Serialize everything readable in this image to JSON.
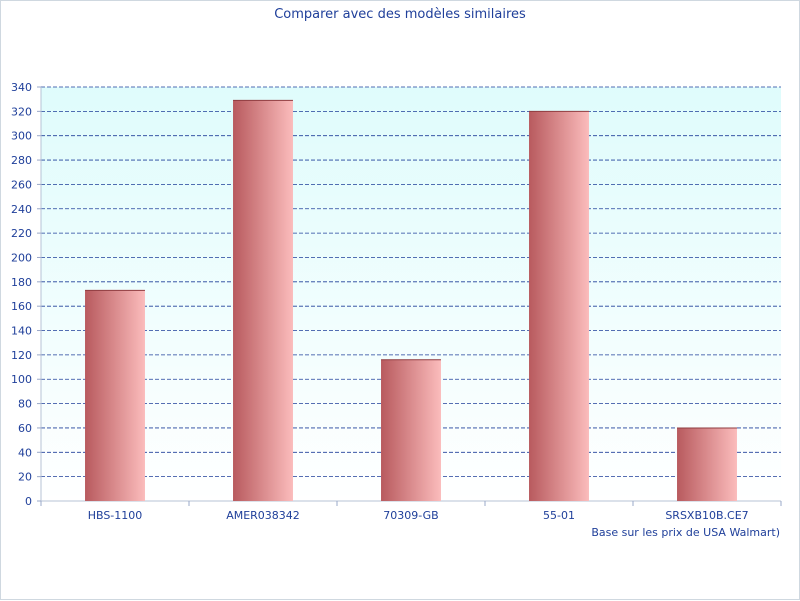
{
  "chart_data": {
    "type": "bar",
    "title": "Comparer avec des modèles similaires",
    "note": "Base sur les prix de USA Walmart)",
    "categories": [
      "HBS-1100",
      "AMER038342",
      "70309-GB",
      "55-01",
      "SRSXB10B.CE7"
    ],
    "values": [
      173,
      329,
      116,
      320,
      60
    ],
    "ylim": [
      0,
      340
    ],
    "ytick_step": 20,
    "grid": true,
    "colors": {
      "bar_dark": "#b85a5e",
      "bar_light": "#fbbcbc",
      "plot_bg_top": "#dffcfc",
      "plot_bg_bottom": "#ffffff",
      "grid": "#1f3f9a",
      "text": "#1f3f9a"
    }
  }
}
